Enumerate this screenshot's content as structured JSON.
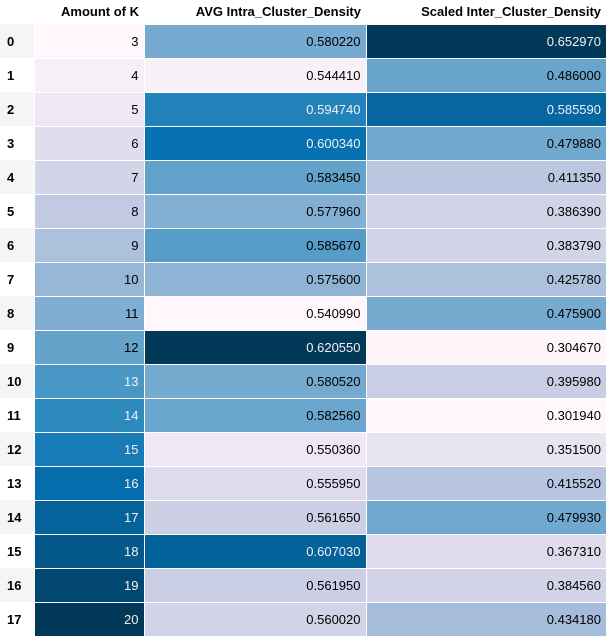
{
  "table": {
    "columns": [
      {
        "key": "index",
        "label": ""
      },
      {
        "key": "k",
        "label": "Amount of K"
      },
      {
        "key": "intra",
        "label": "AVG Intra_Cluster_Density"
      },
      {
        "key": "inter",
        "label": "Scaled Inter_Cluster_Density"
      }
    ],
    "rows": [
      {
        "index": "0",
        "k": "3",
        "intra": "0.580220",
        "inter": "0.652970"
      },
      {
        "index": "1",
        "k": "4",
        "intra": "0.544410",
        "inter": "0.486000"
      },
      {
        "index": "2",
        "k": "5",
        "intra": "0.594740",
        "inter": "0.585590"
      },
      {
        "index": "3",
        "k": "6",
        "intra": "0.600340",
        "inter": "0.479880"
      },
      {
        "index": "4",
        "k": "7",
        "intra": "0.583450",
        "inter": "0.411350"
      },
      {
        "index": "5",
        "k": "8",
        "intra": "0.577960",
        "inter": "0.386390"
      },
      {
        "index": "6",
        "k": "9",
        "intra": "0.585670",
        "inter": "0.383790"
      },
      {
        "index": "7",
        "k": "10",
        "intra": "0.575600",
        "inter": "0.425780"
      },
      {
        "index": "8",
        "k": "11",
        "intra": "0.540990",
        "inter": "0.475900"
      },
      {
        "index": "9",
        "k": "12",
        "intra": "0.620550",
        "inter": "0.304670"
      },
      {
        "index": "10",
        "k": "13",
        "intra": "0.580520",
        "inter": "0.395980"
      },
      {
        "index": "11",
        "k": "14",
        "intra": "0.582560",
        "inter": "0.301940"
      },
      {
        "index": "12",
        "k": "15",
        "intra": "0.550360",
        "inter": "0.351500"
      },
      {
        "index": "13",
        "k": "16",
        "intra": "0.555950",
        "inter": "0.415520"
      },
      {
        "index": "14",
        "k": "17",
        "intra": "0.561650",
        "inter": "0.479930"
      },
      {
        "index": "15",
        "k": "18",
        "intra": "0.607030",
        "inter": "0.367310"
      },
      {
        "index": "16",
        "k": "19",
        "intra": "0.561950",
        "inter": "0.384560"
      },
      {
        "index": "17",
        "k": "20",
        "intra": "0.560020",
        "inter": "0.434180"
      }
    ]
  },
  "gradient": {
    "colormap": "Blues",
    "stops": [
      "#fff7fb",
      "#ece7f2",
      "#d0d1e6",
      "#a6bddb",
      "#74a9cf",
      "#3690c0",
      "#0570b0",
      "#045a8d",
      "#023858"
    ],
    "light_text": "#000000",
    "dark_text": "#f1f1f1"
  }
}
